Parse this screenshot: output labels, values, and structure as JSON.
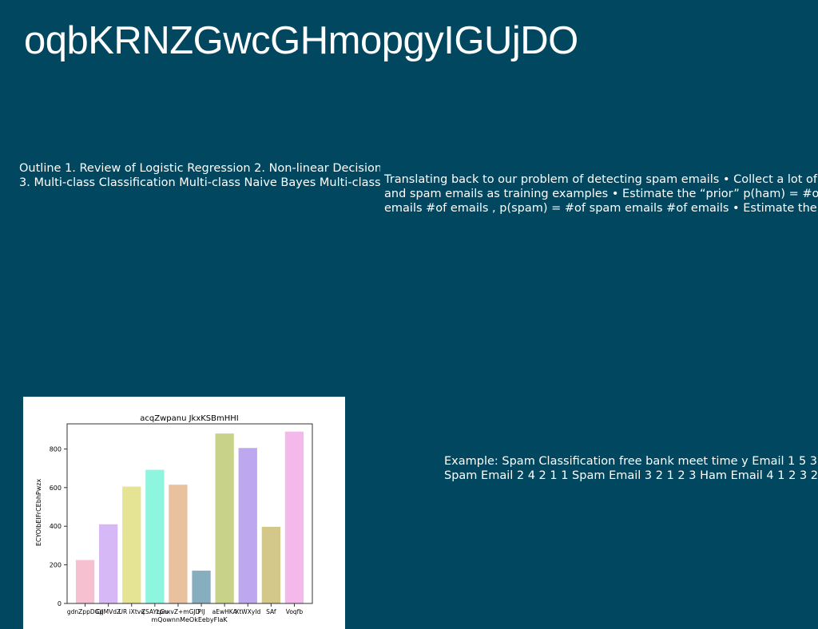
{
  "slide": {
    "title": "oqbKRNZGwcGHmopgyIGUjDO",
    "outline": {
      "line1": "Outline 1. Review of Logistic Regression 2. Non-linear Decision",
      "line2": "3. Multi-class Classification Multi-class Naive Bayes Multi-class"
    },
    "spam": {
      "line1": "Translating back to our problem of detecting spam emails • Collect a lot of",
      "line2": "and spam emails as training examples • Estimate the “prior” p(ham) = #of",
      "line3": "emails #of emails , p(spam) = #of spam emails #of emails • Estimate the"
    },
    "example": {
      "line1": "Example: Spam Classification free bank meet time y Email 1 5 3 1",
      "line2": "Spam Email 2 4 2 1 1 Spam Email 3 2 1 2 3 Ham Email 4 1 2 3 2"
    }
  },
  "chart_data": {
    "type": "bar",
    "title": "acqZwpanu JkxKSBmHHI",
    "xlabel": "mQownnMeOkEebyFlaK",
    "ylabel": "ECYOlbEIFrCEbhPwzx",
    "categories": [
      "gdnZppDGp",
      "CiJMVdZ",
      "UR iXtvq",
      "ZSAYLGu",
      "zpnxvZ+mGJD",
      "PlJ",
      "aEwHKA",
      "XtWXyId",
      "SAf",
      "Voqfb"
    ],
    "values": [
      225,
      410,
      605,
      692,
      615,
      170,
      880,
      805,
      397,
      890
    ],
    "colors": [
      "#f7c0d0",
      "#d6b8f7",
      "#e5e394",
      "#8ef5df",
      "#e9c19e",
      "#86aebf",
      "#c8d289",
      "#bda8ef",
      "#d3c88a",
      "#f4b8ea"
    ],
    "ylim": [
      0,
      930
    ],
    "yticks": [
      0,
      200,
      400,
      600,
      800
    ],
    "grid": false,
    "legend": "none"
  }
}
